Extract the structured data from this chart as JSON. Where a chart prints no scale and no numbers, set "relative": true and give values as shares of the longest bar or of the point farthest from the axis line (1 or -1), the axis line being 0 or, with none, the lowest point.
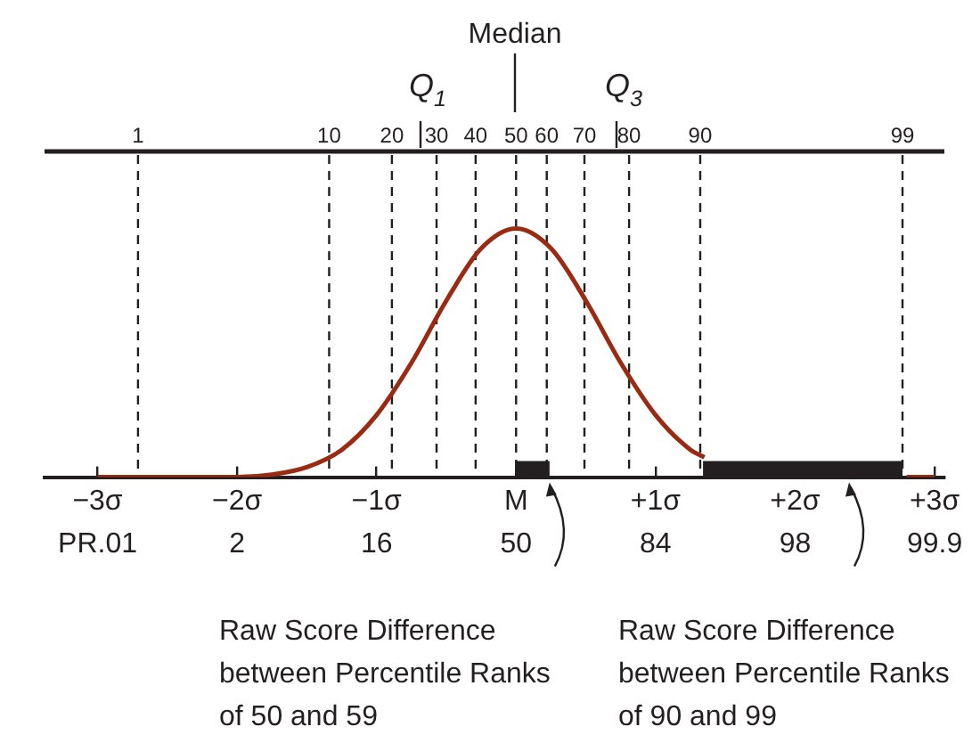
{
  "chart_data": {
    "type": "line",
    "relative": true,
    "x": [
      -3,
      -2.75,
      -2.5,
      -2.25,
      -2,
      -1.75,
      -1.5,
      -1.25,
      -1,
      -0.75,
      -0.5,
      -0.25,
      0,
      0.25,
      0.5,
      0.75,
      1,
      1.25,
      1.35,
      1.75,
      2,
      2.25,
      2.5,
      2.8,
      3
    ],
    "series": [
      {
        "color": "#9a2a12",
        "values": [
          0,
          0,
          0,
          0,
          0,
          0.01,
          0.04,
          0.11,
          0.25,
          0.46,
          0.71,
          0.92,
          1,
          0.92,
          0.71,
          0.46,
          0.25,
          0.11,
          0.08,
          null,
          null,
          null,
          null,
          0,
          0
        ]
      }
    ],
    "xlim": [
      -3.38,
      3.07
    ],
    "xticks": [
      {
        "value": -3,
        "label": "−3σ"
      },
      {
        "value": -2,
        "label": "−2σ"
      },
      {
        "value": -1,
        "label": "−1σ"
      },
      {
        "value": 0,
        "label": "M"
      },
      {
        "value": 1,
        "label": "+1σ"
      },
      {
        "value": 2,
        "label": "+2σ"
      },
      {
        "value": 3,
        "label": "+3σ"
      }
    ],
    "line_style": "solid",
    "marker": "none",
    "legend": false,
    "ref_lines": [
      {
        "axis": "x",
        "value": -2.71,
        "line_style": "dashed"
      },
      {
        "axis": "x",
        "value": -1.34,
        "line_style": "dashed"
      },
      {
        "axis": "x",
        "value": -0.89,
        "line_style": "dashed"
      },
      {
        "axis": "x",
        "value": -0.57,
        "line_style": "dashed"
      },
      {
        "axis": "x",
        "value": -0.29,
        "line_style": "dashed"
      },
      {
        "axis": "x",
        "value": 0,
        "line_style": "dashed"
      },
      {
        "axis": "x",
        "value": 0.22,
        "line_style": "dashed"
      },
      {
        "axis": "x",
        "value": 0.49,
        "line_style": "dashed"
      },
      {
        "axis": "x",
        "value": 0.81,
        "line_style": "dashed"
      },
      {
        "axis": "x",
        "value": 1.32,
        "line_style": "dashed"
      },
      {
        "axis": "x",
        "value": 2.77,
        "line_style": "dashed"
      }
    ],
    "bands": [
      {
        "axis": "x",
        "from": 0,
        "to": 0.24,
        "color": "#231f20"
      },
      {
        "axis": "x",
        "from": 1.34,
        "to": 2.77,
        "color": "#231f20"
      }
    ],
    "annotations": [
      "Median",
      "Q$_{1}$",
      "Q$_{3}$",
      "PR.01",
      "2",
      "16",
      "50",
      "84",
      "98",
      "99.9",
      "1",
      "10",
      "20",
      "30",
      "40",
      "50",
      "60",
      "70",
      "80",
      "90",
      "99",
      "Raw Score Difference between Percentile Ranks of 50 and 59",
      "Raw Score Difference between Percentile Ranks of 90 and 99"
    ]
  }
}
